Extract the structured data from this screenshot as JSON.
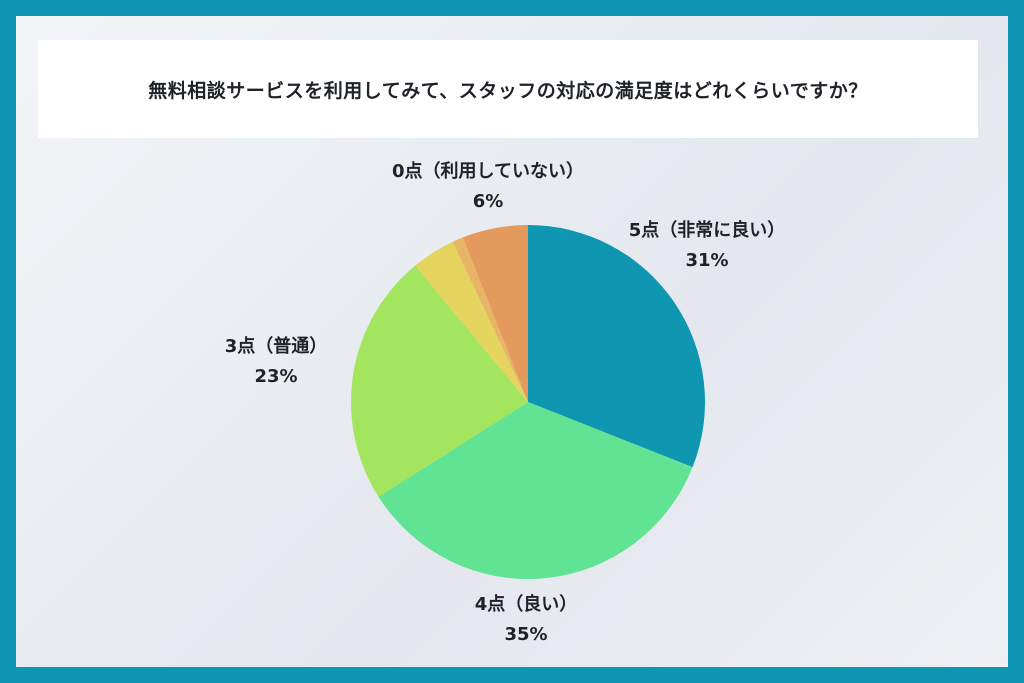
{
  "title": "無料相談サービスを利用してみて、スタッフの対応の満足度はどれくらいですか？",
  "chart_data": {
    "type": "pie",
    "start": "top",
    "direction": "clockwise",
    "slices": [
      {
        "label": "5点（非常に良い）",
        "display": "31%",
        "value": 31,
        "color": "#0f96b0",
        "labeled": true
      },
      {
        "label": "4点（良い）",
        "display": "35%",
        "value": 35,
        "color": "#60e393",
        "labeled": true
      },
      {
        "label": "3点（普通）",
        "display": "23%",
        "value": 23,
        "color": "#a3e55e",
        "labeled": true
      },
      {
        "label": "",
        "display": "",
        "value": 4,
        "color": "#e5d55f",
        "labeled": false
      },
      {
        "label": "",
        "display": "",
        "value": 1,
        "color": "#e8b466",
        "labeled": false
      },
      {
        "label": "0点（利用していない）",
        "display": "6%",
        "value": 6,
        "color": "#e59a5d",
        "labeled": true
      }
    ]
  }
}
